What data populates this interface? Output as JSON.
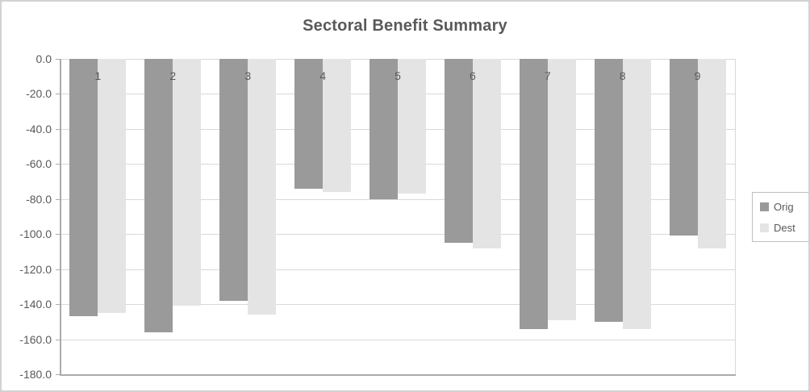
{
  "chart_data": {
    "type": "bar",
    "title": "Sectoral Benefit Summary",
    "categories": [
      "1",
      "2",
      "3",
      "4",
      "5",
      "6",
      "7",
      "8",
      "9"
    ],
    "series": [
      {
        "name": "Orig",
        "color": "#9A9A9A",
        "values": [
          -147,
          -156,
          -138,
          -74,
          -80,
          -105,
          -154,
          -150,
          -101
        ]
      },
      {
        "name": "Dest",
        "color": "#E4E4E4",
        "values": [
          -145,
          -141,
          -146,
          -76,
          -77,
          -108,
          -149,
          -154,
          -108
        ]
      }
    ],
    "ylim": [
      -180,
      0
    ],
    "ytick_step": 20,
    "yticklabels": [
      "0.0",
      "-20.0",
      "-40.0",
      "-60.0",
      "-80.0",
      "-100.0",
      "-120.0",
      "-140.0",
      "-160.0",
      "-180.0"
    ],
    "grid": true,
    "legend_position": "right",
    "colors": {
      "axis_line": "#ABABAB",
      "gridline": "#D9D9D9",
      "text": "#595959",
      "outer_border": "#D2D2D2",
      "legend_border": "#BFBFBF"
    }
  }
}
